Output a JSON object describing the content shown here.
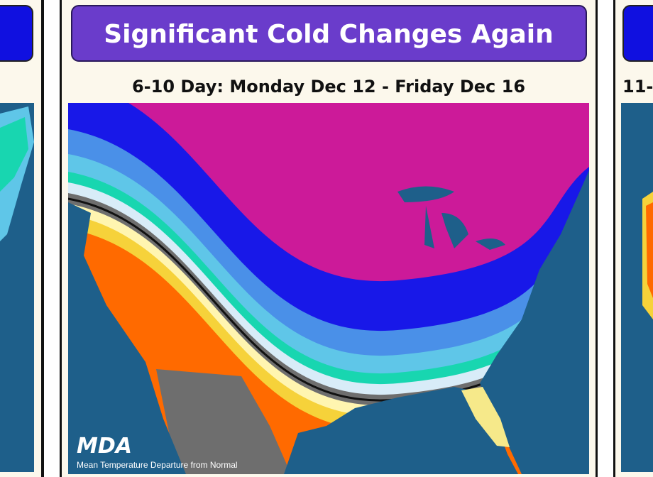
{
  "header": {
    "title": "Significant Cold Changes Again",
    "subtitle": "6-10 Day: Monday Dec 12 - Friday Dec 16"
  },
  "map": {
    "logo": "MDA",
    "caption": "Mean Temperature Departure from Normal"
  },
  "right_panel": {
    "subtitle": "11-"
  }
}
